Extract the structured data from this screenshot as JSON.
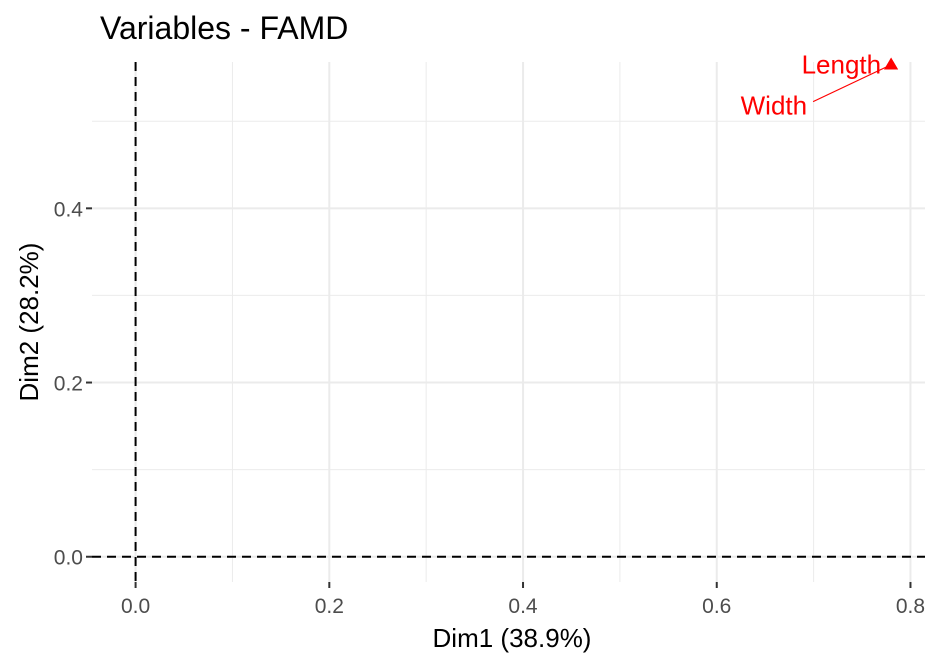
{
  "chart_data": {
    "type": "scatter",
    "title": "Variables - FAMD",
    "xlabel": "Dim1 (38.9%)",
    "ylabel": "Dim2 (28.2%)",
    "xlim": [
      -0.045,
      0.815
    ],
    "ylim": [
      -0.029,
      0.568
    ],
    "x_ticks": [
      0.0,
      0.2,
      0.4,
      0.6,
      0.8
    ],
    "x_tick_labels": [
      "0.0",
      "0.2",
      "0.4",
      "0.6",
      "0.8"
    ],
    "y_ticks": [
      0.0,
      0.2,
      0.4
    ],
    "y_tick_labels": [
      "0.0",
      "0.2",
      "0.4"
    ],
    "grid": true,
    "reference_lines": {
      "x": 0,
      "y": 0,
      "style": "dashed"
    },
    "marker_color": "#ff0000",
    "points": [
      {
        "label": "Length",
        "x": 0.78,
        "y": 0.565,
        "marker": "triangle"
      },
      {
        "label": "Width",
        "x": 0.78,
        "y": 0.565,
        "marker": "triangle"
      }
    ]
  }
}
